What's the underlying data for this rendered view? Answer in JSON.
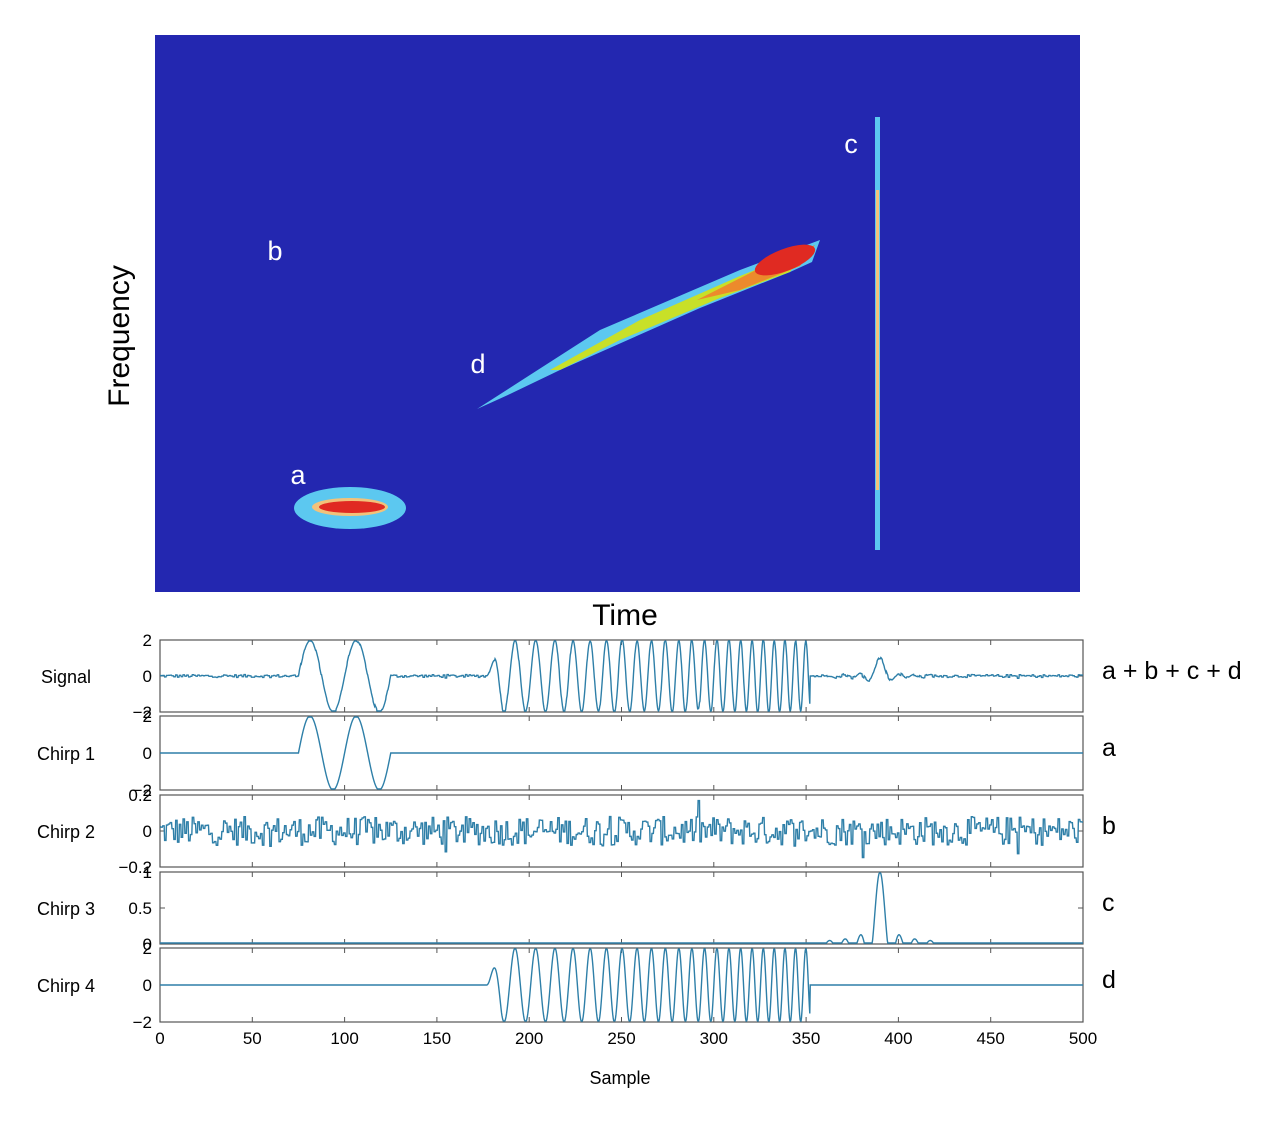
{
  "colors": {
    "background": "#2327b0",
    "trace": "#2e7fa8",
    "axis": "#555555",
    "cyan": "#5cc8f0",
    "green_yellow": "#c8e028",
    "orange": "#ec8a2c",
    "red": "#e02a22",
    "peach": "#f2c27a"
  },
  "chart_data": [
    {
      "type": "heatmap",
      "xlabel": "Time",
      "ylabel": "Frequency",
      "annotations": [
        {
          "text": "a",
          "component": "a"
        },
        {
          "text": "b",
          "component": "b"
        },
        {
          "text": "c",
          "component": "c"
        },
        {
          "text": "d",
          "component": "d"
        }
      ],
      "components": [
        {
          "name": "a",
          "shape": "blob",
          "time_range": [
            75,
            125
          ],
          "frequency": "low"
        },
        {
          "name": "b",
          "shape": "broadband noise"
        },
        {
          "name": "c",
          "shape": "vertical line",
          "time": 390
        },
        {
          "name": "d",
          "shape": "linear chirp",
          "time_range": [
            180,
            355
          ],
          "frequency": "rising"
        }
      ]
    },
    {
      "type": "line",
      "xlabel": "Sample",
      "xlim": [
        0,
        500
      ],
      "xticks": [
        0,
        50,
        100,
        150,
        200,
        250,
        300,
        350,
        400,
        450,
        500
      ],
      "xtick_labels": [
        "0",
        "50",
        "100",
        "150",
        "200",
        "250",
        "300",
        "350",
        "400",
        "450",
        "500"
      ],
      "panels": [
        {
          "name": "Signal",
          "right_label": "a + b + c + d",
          "ylim": [
            -2,
            2
          ],
          "yticks": [
            2,
            0,
            -2
          ],
          "ytick_labels": [
            "2",
            "0",
            "−2"
          ],
          "composition": [
            "a",
            "b",
            "c",
            "d"
          ]
        },
        {
          "name": "Chirp 1",
          "right_label": "a",
          "ylim": [
            -2,
            2
          ],
          "yticks": [
            2,
            0,
            -2
          ],
          "ytick_labels": [
            "2",
            "0",
            "−2"
          ],
          "composition": [
            "a"
          ]
        },
        {
          "name": "Chirp 2",
          "right_label": "b",
          "ylim": [
            -0.2,
            0.2
          ],
          "yticks": [
            0.2,
            0,
            -0.2
          ],
          "ytick_labels": [
            "0.2",
            "0",
            "−0.2"
          ],
          "composition": [
            "b"
          ]
        },
        {
          "name": "Chirp 3",
          "right_label": "c",
          "ylim": [
            0,
            1
          ],
          "yticks": [
            1,
            0.5,
            0
          ],
          "ytick_labels": [
            "1",
            "0.5",
            "0"
          ],
          "composition": [
            "c"
          ]
        },
        {
          "name": "Chirp 4",
          "right_label": "d",
          "ylim": [
            -2,
            2
          ],
          "yticks": [
            2,
            0,
            -2
          ],
          "ytick_labels": [
            "2",
            "0",
            "−2"
          ],
          "composition": [
            "d"
          ]
        }
      ],
      "components": {
        "a": {
          "description": "two-cycle sinusoid burst",
          "start": 75,
          "end": 125,
          "amplitude": 2
        },
        "b": {
          "description": "random noise",
          "amplitude": 0.1
        },
        "c": {
          "description": "sinc-like impulse",
          "center": 390,
          "peak": 1
        },
        "d": {
          "description": "linear chirp, increasing frequency",
          "start": 177,
          "end": 352,
          "amplitude": 2,
          "start_period": 13,
          "end_period": 5.5
        }
      }
    }
  ]
}
